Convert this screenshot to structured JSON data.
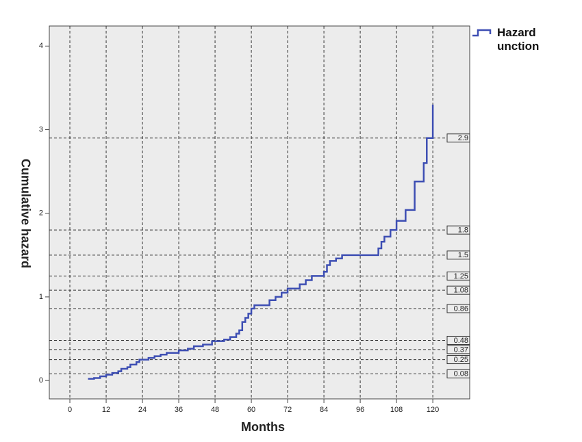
{
  "chart_data": {
    "type": "step",
    "x_label": "Months",
    "y_label": "Cumulative hazard",
    "xlim": [
      -6.8,
      132.2
    ],
    "ylim": [
      -0.22,
      4.24
    ],
    "xticks": [
      0,
      12,
      24,
      36,
      48,
      60,
      72,
      84,
      96,
      108,
      120
    ],
    "yticks": [
      0,
      1,
      2,
      3,
      4
    ],
    "x_grid": true,
    "reference_lines": [
      0.08,
      0.25,
      0.37,
      0.48,
      0.86,
      1.08,
      1.25,
      1.5,
      1.8,
      2.9
    ],
    "series": [
      {
        "name": "Hazard unction",
        "color": "#3d4eb3",
        "x": [
          6,
          8,
          10,
          12,
          14,
          16,
          17,
          19,
          20,
          22,
          23,
          26,
          28,
          30,
          32,
          36,
          39,
          41,
          44,
          47,
          51,
          53,
          55,
          56,
          57,
          58,
          59,
          60,
          61,
          66,
          68,
          70,
          72,
          76,
          78,
          80,
          84,
          85,
          86,
          88,
          90,
          102,
          103,
          104,
          106,
          108,
          111,
          114,
          117,
          118,
          120
        ],
        "values": [
          0.02,
          0.03,
          0.05,
          0.07,
          0.09,
          0.11,
          0.14,
          0.16,
          0.19,
          0.22,
          0.25,
          0.27,
          0.29,
          0.31,
          0.33,
          0.36,
          0.38,
          0.41,
          0.43,
          0.47,
          0.49,
          0.52,
          0.56,
          0.6,
          0.7,
          0.75,
          0.8,
          0.86,
          0.9,
          0.96,
          1.0,
          1.05,
          1.1,
          1.15,
          1.2,
          1.25,
          1.3,
          1.38,
          1.43,
          1.46,
          1.5,
          1.58,
          1.66,
          1.72,
          1.8,
          1.91,
          2.04,
          2.38,
          2.6,
          2.9,
          3.3
        ]
      }
    ]
  }
}
